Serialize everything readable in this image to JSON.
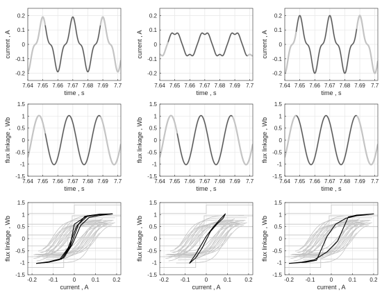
{
  "chart_data": [
    {
      "type": "line",
      "kind": "time",
      "wave": "current",
      "variant": "a",
      "xlabel": "time , s",
      "ylabel": "current , A",
      "xlim": [
        7.64,
        7.702
      ],
      "ylim": [
        -0.25,
        0.25
      ],
      "xticks": [
        "7.64",
        "7.65",
        "7.66",
        "7.67",
        "7.68",
        "7.69",
        "7.7"
      ],
      "yticks": [
        "-0.2",
        "-0.1",
        "0",
        "0.1",
        "0.2"
      ],
      "amplitude": 0.19,
      "period": 0.02,
      "highlight_range": [
        7.6515,
        7.6885
      ],
      "grid": true,
      "colors": {
        "highlight": "#505050",
        "base": "#c4c4c4"
      }
    },
    {
      "type": "line",
      "kind": "time",
      "wave": "current",
      "variant": "b",
      "xlabel": "time , s",
      "ylabel": "current , A",
      "xlim": [
        7.64,
        7.702
      ],
      "ylim": [
        -0.25,
        0.25
      ],
      "xticks": [
        "7.64",
        "7.65",
        "7.66",
        "7.67",
        "7.68",
        "7.69",
        "7.7"
      ],
      "yticks": [
        "-0.2",
        "-0.1",
        "0",
        "0.1",
        "0.2"
      ],
      "amplitude": 0.09,
      "period": 0.02,
      "highlight_range": [
        7.6455,
        7.6985
      ],
      "grid": true,
      "colors": {
        "highlight": "#505050",
        "base": "#c4c4c4"
      }
    },
    {
      "type": "line",
      "kind": "time",
      "wave": "current",
      "variant": "c",
      "xlabel": "time , s",
      "ylabel": "current , A",
      "xlim": [
        7.64,
        7.702
      ],
      "ylim": [
        -0.25,
        0.25
      ],
      "xticks": [
        "7.64",
        "7.65",
        "7.66",
        "7.67",
        "7.68",
        "7.69",
        "7.7"
      ],
      "yticks": [
        "-0.2",
        "-0.1",
        "0",
        "0.1",
        "0.2"
      ],
      "amplitude": 0.2,
      "period": 0.02,
      "highlight_range": [
        7.6475,
        7.688
      ],
      "grid": true,
      "colors": {
        "highlight": "#505050",
        "base": "#c4c4c4"
      }
    },
    {
      "type": "line",
      "kind": "time",
      "wave": "flux",
      "xlabel": "time , s",
      "ylabel": "flux linkage , Wb",
      "xlim": [
        7.64,
        7.702
      ],
      "ylim": [
        -1.5,
        1.5
      ],
      "xticks": [
        "7.64",
        "7.65",
        "7.66",
        "7.67",
        "7.68",
        "7.69",
        "7.7"
      ],
      "yticks": [
        "-1.5",
        "-1",
        "-0.5",
        "0",
        "0.5",
        "1",
        "1.5"
      ],
      "amplitude": 1.02,
      "period": 0.02,
      "highlight_range": [
        7.6515,
        7.6885
      ],
      "grid": true,
      "colors": {
        "highlight": "#505050",
        "base": "#c4c4c4"
      }
    },
    {
      "type": "line",
      "kind": "time",
      "wave": "flux",
      "xlabel": "time , s",
      "ylabel": "flux linkage , Wb",
      "xlim": [
        7.64,
        7.702
      ],
      "ylim": [
        -1.5,
        1.5
      ],
      "xticks": [
        "7.64",
        "7.65",
        "7.66",
        "7.67",
        "7.68",
        "7.69",
        "7.7"
      ],
      "yticks": [
        "-1.5",
        "-1",
        "-0.5",
        "0",
        "0.5",
        "1",
        "1.5"
      ],
      "amplitude": 1.02,
      "period": 0.02,
      "highlight_range": [
        7.6515,
        7.6885
      ],
      "grid": true,
      "colors": {
        "highlight": "#505050",
        "base": "#c4c4c4"
      }
    },
    {
      "type": "line",
      "kind": "time",
      "wave": "flux",
      "xlabel": "time , s",
      "ylabel": "flux linkage , Wb",
      "xlim": [
        7.64,
        7.702
      ],
      "ylim": [
        -1.5,
        1.5
      ],
      "xticks": [
        "7.64",
        "7.65",
        "7.66",
        "7.67",
        "7.68",
        "7.69",
        "7.7"
      ],
      "yticks": [
        "-1.5",
        "-1",
        "-0.5",
        "0",
        "0.5",
        "1",
        "1.5"
      ],
      "amplitude": 1.02,
      "period": 0.02,
      "highlight_range": [
        7.6475,
        7.688
      ],
      "grid": true,
      "colors": {
        "highlight": "#505050",
        "base": "#c4c4c4"
      }
    },
    {
      "type": "line",
      "kind": "loop",
      "xlabel": "current , A",
      "ylabel": "flux linkage , Wb",
      "xlim": [
        -0.22,
        0.22
      ],
      "ylim": [
        -1.5,
        1.5
      ],
      "xticks": [
        "-0.2",
        "-0.1",
        "0",
        "0.1",
        "0.2"
      ],
      "yticks": [
        "-1.5",
        "-1",
        "-0.5",
        "0",
        "0.5",
        "1",
        "1.5"
      ],
      "grid": true,
      "colors": {
        "highlight": "#000000",
        "base": "#c4c4c4"
      },
      "highlight_loops": [
        {
          "x": [
            -0.18,
            -0.12,
            -0.06,
            -0.02,
            0.02,
            0.06,
            0.12,
            0.18,
            0.12,
            0.06,
            0.0,
            -0.02,
            -0.06,
            -0.12,
            -0.18
          ],
          "y": [
            -1.03,
            -0.98,
            -0.85,
            -0.35,
            0.6,
            0.92,
            1.0,
            1.03,
            1.0,
            0.95,
            0.6,
            -0.3,
            -0.85,
            -0.98,
            -1.03
          ]
        },
        {
          "x": [
            -0.18,
            -0.12,
            -0.05,
            -0.01,
            0.03,
            0.07,
            0.13,
            0.18,
            0.12,
            0.05,
            0.01,
            -0.03,
            -0.07,
            -0.13,
            -0.18
          ],
          "y": [
            -1.03,
            -0.96,
            -0.8,
            -0.25,
            0.55,
            0.88,
            0.98,
            1.03,
            1.02,
            0.93,
            0.5,
            -0.4,
            -0.88,
            -0.99,
            -1.03
          ]
        }
      ]
    },
    {
      "type": "line",
      "kind": "loop",
      "xlabel": "current , A",
      "ylabel": "flux linkage , Wb",
      "xlim": [
        -0.22,
        0.22
      ],
      "ylim": [
        -1.5,
        1.5
      ],
      "xticks": [
        "-0.2",
        "-0.1",
        "0",
        "0.1",
        "0.2"
      ],
      "yticks": [
        "-1.5",
        "-1",
        "-0.5",
        "0",
        "0.5",
        "1",
        "1.5"
      ],
      "grid": true,
      "colors": {
        "highlight": "#000000",
        "base": "#c4c4c4"
      },
      "highlight_loops": [
        {
          "x": [
            -0.08,
            -0.05,
            -0.02,
            0.0,
            0.02,
            0.05,
            0.08,
            0.09,
            0.06,
            0.03,
            0.0,
            -0.02,
            -0.05,
            -0.08
          ],
          "y": [
            -1.03,
            -0.8,
            -0.4,
            -0.05,
            0.3,
            0.6,
            0.85,
            1.03,
            0.75,
            0.45,
            0.1,
            -0.2,
            -0.65,
            -1.03
          ]
        }
      ]
    },
    {
      "type": "line",
      "kind": "loop",
      "xlabel": "current , A",
      "ylabel": "flux linkage , Wb",
      "xlim": [
        -0.22,
        0.22
      ],
      "ylim": [
        -1.5,
        1.5
      ],
      "xticks": [
        "-0.2",
        "-0.1",
        "0",
        "0.1",
        "0.2"
      ],
      "yticks": [
        "-1.5",
        "-1",
        "-0.5",
        "0",
        "0.5",
        "1",
        "1.5"
      ],
      "grid": true,
      "colors": {
        "highlight": "#000000",
        "base": "#c4c4c4"
      },
      "highlight_loops": [
        {
          "x": [
            -0.2,
            -0.12,
            -0.07,
            -0.05,
            -0.02,
            0.02,
            0.07,
            0.12,
            0.2,
            0.12,
            0.08,
            0.06,
            0.03,
            -0.02,
            -0.08,
            -0.14,
            -0.2
          ],
          "y": [
            -1.03,
            -0.98,
            -0.9,
            -0.5,
            0.1,
            0.6,
            0.85,
            0.95,
            1.03,
            0.98,
            0.9,
            0.5,
            -0.1,
            -0.55,
            -0.88,
            -0.98,
            -1.03
          ]
        }
      ]
    }
  ]
}
